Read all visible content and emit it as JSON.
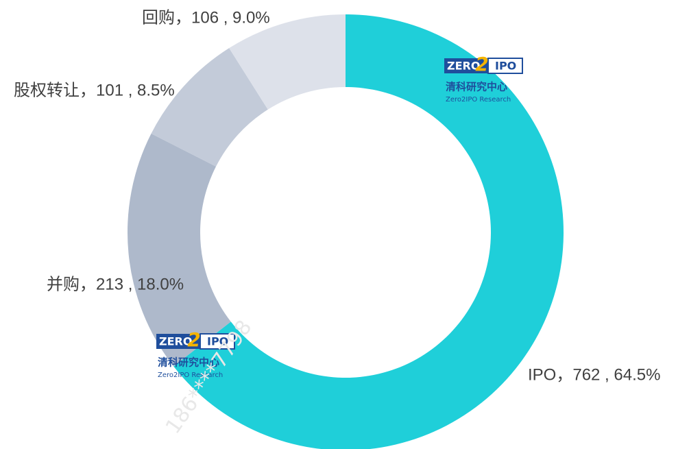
{
  "chart_data": {
    "type": "donut",
    "values": [
      762,
      213,
      101,
      106
    ],
    "value_labels": [
      "IPO，762 , 64.5%",
      "并购，213 , 18.0%",
      "股权转让，101 , 8.5%",
      "回购，106 , 9.0%"
    ],
    "colors": [
      "#1fcfd9",
      "#aeb9cb",
      "#c3cbd9",
      "#dde1ea"
    ]
  },
  "logos": [
    {
      "zero": "ZERO",
      "two": "2",
      "ipo": "IPO",
      "cn": "清科研究中心",
      "en": "Zero2IPO Research"
    },
    {
      "zero": "ZERO",
      "two": "2",
      "ipo": "IPO",
      "cn": "清科研究中心",
      "en": "Zero2IPO Research"
    }
  ],
  "watermark": "186****7798"
}
